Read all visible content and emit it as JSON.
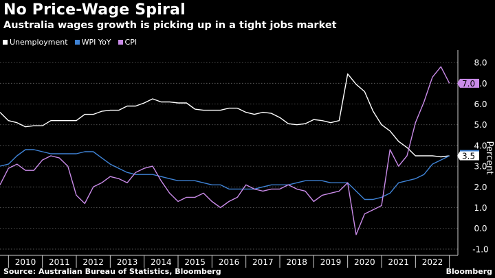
{
  "header": {
    "title": "No Price-Wage Spiral",
    "subtitle": "Australia wages growth is picking up in a tight jobs market"
  },
  "footer": {
    "source": "Source: Australian Bureau of Statistics, Bloomberg",
    "brand": "Bloomberg"
  },
  "chart_data": {
    "type": "line",
    "ylabel": "Percent",
    "ylim": [
      -1.3,
      8.6
    ],
    "yticks": [
      "-1.0",
      "0.0",
      "1.0",
      "2.0",
      "3.0",
      "4.0",
      "5.0",
      "6.0",
      "7.0",
      "8.0"
    ],
    "xticks": [
      "2010",
      "2011",
      "2012",
      "2013",
      "2014",
      "2015",
      "2016",
      "2017",
      "2018",
      "2019",
      "2020",
      "2021",
      "2022"
    ],
    "x_range": [
      2009.75,
      2023.25
    ],
    "grid": "horizontal dashed",
    "legend_position": "top-left",
    "colors": {
      "Unemployment": "#ffffff",
      "WPI YoY": "#3f83d6",
      "CPI": "#c98be8"
    },
    "end_labels": [
      {
        "series": "CPI",
        "text": "7.0"
      },
      {
        "series": "WPI YoY",
        "text": "3.5"
      }
    ],
    "series": [
      {
        "name": "Unemployment",
        "x": [
          2009.75,
          2010.0,
          2010.25,
          2010.5,
          2010.75,
          2011.0,
          2011.25,
          2011.5,
          2011.75,
          2012.0,
          2012.25,
          2012.5,
          2012.75,
          2013.0,
          2013.25,
          2013.5,
          2013.75,
          2014.0,
          2014.25,
          2014.5,
          2014.75,
          2015.0,
          2015.25,
          2015.5,
          2015.75,
          2016.0,
          2016.25,
          2016.5,
          2016.75,
          2017.0,
          2017.25,
          2017.5,
          2017.75,
          2018.0,
          2018.25,
          2018.5,
          2018.75,
          2019.0,
          2019.25,
          2019.5,
          2019.75,
          2020.0,
          2020.25,
          2020.5,
          2020.75,
          2021.0,
          2021.25,
          2021.5,
          2021.75,
          2022.0,
          2022.25,
          2022.5,
          2022.75,
          2023.0
        ],
        "y": [
          5.6,
          5.2,
          5.1,
          4.9,
          4.95,
          4.95,
          5.2,
          5.2,
          5.2,
          5.2,
          5.5,
          5.5,
          5.65,
          5.7,
          5.7,
          5.9,
          5.9,
          6.05,
          6.25,
          6.1,
          6.1,
          6.05,
          6.05,
          5.75,
          5.7,
          5.7,
          5.7,
          5.8,
          5.8,
          5.6,
          5.5,
          5.6,
          5.55,
          5.35,
          5.05,
          5.0,
          5.05,
          5.25,
          5.2,
          5.1,
          5.2,
          7.45,
          6.95,
          6.6,
          5.65,
          5.0,
          4.7,
          4.2,
          3.9,
          3.5,
          3.5,
          3.5,
          3.45,
          3.5
        ]
      },
      {
        "name": "WPI YoY",
        "x": [
          2009.75,
          2010.0,
          2010.25,
          2010.5,
          2010.75,
          2011.0,
          2011.25,
          2011.5,
          2011.75,
          2012.0,
          2012.25,
          2012.5,
          2012.75,
          2013.0,
          2013.25,
          2013.5,
          2013.75,
          2014.0,
          2014.25,
          2014.5,
          2014.75,
          2015.0,
          2015.25,
          2015.5,
          2015.75,
          2016.0,
          2016.25,
          2016.5,
          2016.75,
          2017.0,
          2017.25,
          2017.5,
          2017.75,
          2018.0,
          2018.25,
          2018.5,
          2018.75,
          2019.0,
          2019.25,
          2019.5,
          2019.75,
          2020.0,
          2020.25,
          2020.5,
          2020.75,
          2021.0,
          2021.25,
          2021.5,
          2021.75,
          2022.0,
          2022.25,
          2022.5,
          2022.75,
          2023.0
        ],
        "y": [
          3.0,
          3.1,
          3.5,
          3.8,
          3.8,
          3.7,
          3.6,
          3.6,
          3.6,
          3.6,
          3.7,
          3.7,
          3.4,
          3.1,
          2.9,
          2.7,
          2.6,
          2.6,
          2.6,
          2.5,
          2.4,
          2.3,
          2.3,
          2.3,
          2.2,
          2.1,
          2.1,
          1.9,
          1.9,
          1.9,
          1.9,
          2.0,
          2.1,
          2.1,
          2.1,
          2.2,
          2.3,
          2.3,
          2.3,
          2.2,
          2.2,
          2.2,
          1.8,
          1.4,
          1.4,
          1.5,
          1.7,
          2.2,
          2.3,
          2.4,
          2.6,
          3.1,
          3.3,
          3.5
        ]
      },
      {
        "name": "CPI",
        "x": [
          2009.75,
          2010.0,
          2010.25,
          2010.5,
          2010.75,
          2011.0,
          2011.25,
          2011.5,
          2011.75,
          2012.0,
          2012.25,
          2012.5,
          2012.75,
          2013.0,
          2013.25,
          2013.5,
          2013.75,
          2014.0,
          2014.25,
          2014.5,
          2014.75,
          2015.0,
          2015.25,
          2015.5,
          2015.75,
          2016.0,
          2016.25,
          2016.5,
          2016.75,
          2017.0,
          2017.25,
          2017.5,
          2017.75,
          2018.0,
          2018.25,
          2018.5,
          2018.75,
          2019.0,
          2019.25,
          2019.5,
          2019.75,
          2020.0,
          2020.25,
          2020.5,
          2020.75,
          2021.0,
          2021.25,
          2021.5,
          2021.75,
          2022.0,
          2022.25,
          2022.5,
          2022.75,
          2023.0
        ],
        "y": [
          2.1,
          2.9,
          3.1,
          2.8,
          2.8,
          3.3,
          3.5,
          3.4,
          3.0,
          1.6,
          1.2,
          2.0,
          2.2,
          2.5,
          2.4,
          2.2,
          2.7,
          2.9,
          3.0,
          2.3,
          1.7,
          1.3,
          1.5,
          1.5,
          1.7,
          1.3,
          1.0,
          1.3,
          1.5,
          2.1,
          1.9,
          1.8,
          1.9,
          1.9,
          2.1,
          1.9,
          1.8,
          1.3,
          1.6,
          1.7,
          1.8,
          2.2,
          -0.3,
          0.7,
          0.9,
          1.1,
          3.8,
          3.0,
          3.5,
          5.1,
          6.1,
          7.3,
          7.8,
          7.0
        ]
      }
    ]
  }
}
